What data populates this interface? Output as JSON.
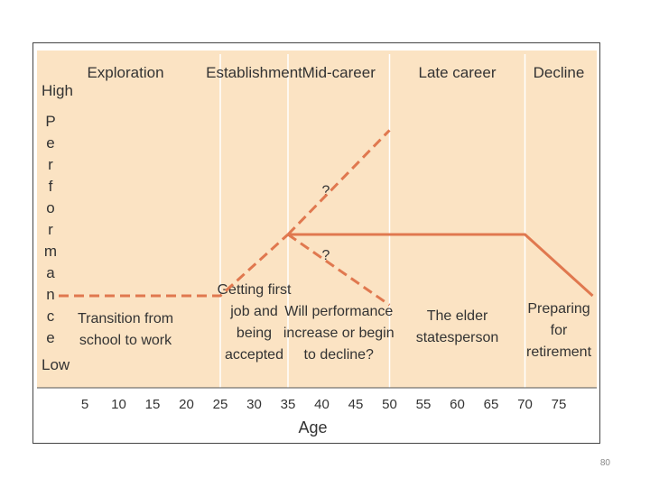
{
  "chart_data": {
    "type": "line",
    "x_ticks": [
      5,
      10,
      15,
      20,
      25,
      30,
      35,
      40,
      45,
      50,
      55,
      60,
      65,
      70,
      75
    ],
    "xlabel": "Age",
    "y_high_label": "High",
    "y_low_label": "Low",
    "ylabel_letters": [
      "P",
      "e",
      "r",
      "f",
      "o",
      "r",
      "m",
      "a",
      "n",
      "c",
      "e"
    ],
    "stage_boundaries": [
      25,
      35,
      50,
      70
    ],
    "stages": [
      {
        "label": "Exploration",
        "x": 11
      },
      {
        "label": "Establishment",
        "x": 30
      },
      {
        "label": "Mid-career",
        "x": 42.5
      },
      {
        "label": "Late career",
        "x": 60
      },
      {
        "label": "Decline",
        "x": 75
      }
    ],
    "descriptions": [
      {
        "lines": [
          "Transition from",
          "school to work"
        ],
        "x": 11
      },
      {
        "lines": [
          "Getting first",
          "job and",
          "being",
          "accepted"
        ],
        "x": 30
      },
      {
        "lines": [
          "Will performance",
          "increase or begin",
          "to decline?"
        ],
        "x": 42.5
      },
      {
        "lines": [
          "The elder",
          "statesperson"
        ],
        "x": 60
      },
      {
        "lines": [
          "Preparing",
          "for",
          "retirement"
        ],
        "x": 75
      }
    ],
    "question_marks": [
      {
        "text": "?",
        "x": 39,
        "y": 0.64
      },
      {
        "text": "?",
        "x": 39,
        "y": 0.43
      }
    ],
    "series": [
      {
        "style": "dashed",
        "points": [
          [
            -2,
            0.3
          ],
          [
            25,
            0.3
          ],
          [
            35,
            0.5
          ]
        ]
      },
      {
        "style": "dashed",
        "points": [
          [
            35,
            0.5
          ],
          [
            50,
            0.84
          ]
        ]
      },
      {
        "style": "dashed",
        "points": [
          [
            35,
            0.5
          ],
          [
            50,
            0.27
          ]
        ]
      },
      {
        "style": "solid",
        "points": [
          [
            35,
            0.5
          ],
          [
            70,
            0.5
          ],
          [
            80,
            0.3
          ]
        ]
      }
    ],
    "colors": {
      "background": "#fbe3c3",
      "line": "#e0784f",
      "divider": "#ffffff",
      "axis": "#555555",
      "text": "#333333"
    }
  },
  "page": {
    "number": "80"
  }
}
